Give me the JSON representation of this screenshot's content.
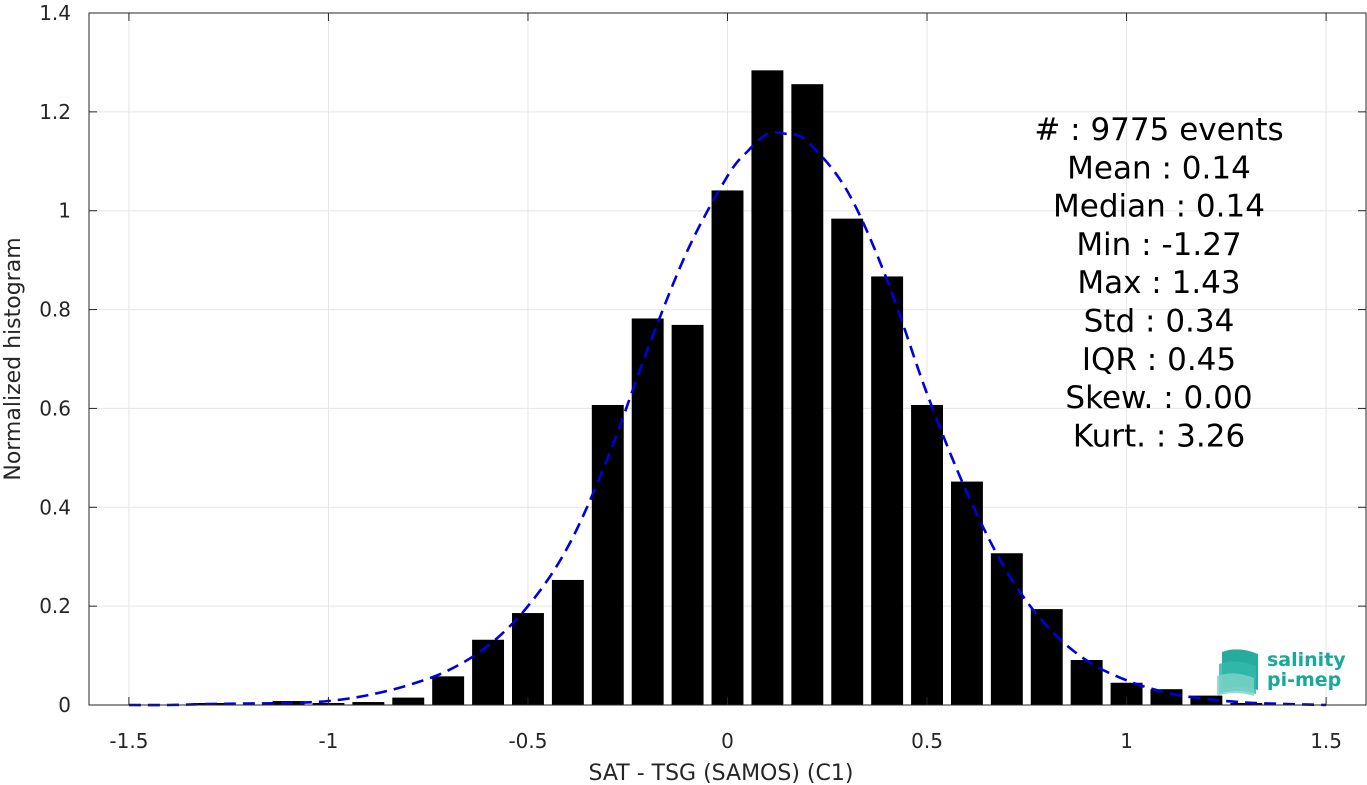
{
  "chart_data": {
    "type": "bar",
    "xlabel": "SAT - TSG (SAMOS) (C1)",
    "ylabel": "Normalized histogram",
    "xlim": [
      -1.6,
      1.6
    ],
    "ylim": [
      0,
      1.4
    ],
    "xticks": [
      -1.5,
      -1,
      -0.5,
      0,
      0.5,
      1,
      1.5
    ],
    "xtick_labels": [
      "-1.5",
      "-1",
      "-0.5",
      "0",
      "0.5",
      "1",
      "1.5"
    ],
    "yticks": [
      0,
      0.2,
      0.4,
      0.6,
      0.8,
      1,
      1.2,
      1.4
    ],
    "ytick_labels": [
      "0",
      "0.2",
      "0.4",
      "0.6",
      "0.8",
      "1",
      "1.2",
      "1.4"
    ],
    "grid": true,
    "bars": {
      "color": "#000000",
      "bin_width": 0.1,
      "x": [
        -1.3,
        -1.1,
        -1.0,
        -0.9,
        -0.8,
        -0.7,
        -0.6,
        -0.5,
        -0.4,
        -0.3,
        -0.2,
        -0.1,
        0.0,
        0.1,
        0.2,
        0.3,
        0.4,
        0.5,
        0.6,
        0.7,
        0.8,
        0.9,
        1.0,
        1.1,
        1.2,
        1.3
      ],
      "values": [
        0.004,
        0.008,
        0.004,
        0.006,
        0.015,
        0.058,
        0.132,
        0.186,
        0.253,
        0.607,
        0.782,
        0.769,
        1.041,
        1.284,
        1.256,
        0.984,
        0.867,
        0.607,
        0.452,
        0.307,
        0.194,
        0.091,
        0.045,
        0.032,
        0.019,
        0.004
      ]
    },
    "fit_curve": {
      "color": "#0000dd",
      "style": "dashed",
      "x": [
        -1.5,
        -1.4,
        -1.3,
        -1.2,
        -1.1,
        -1.0,
        -0.9,
        -0.8,
        -0.7,
        -0.6,
        -0.5,
        -0.4,
        -0.3,
        -0.2,
        -0.1,
        0.0,
        0.05,
        0.1,
        0.15,
        0.2,
        0.3,
        0.4,
        0.5,
        0.6,
        0.7,
        0.8,
        0.9,
        1.0,
        1.1,
        1.2,
        1.3,
        1.4,
        1.5
      ],
      "y": [
        0.0,
        0.0,
        0.002,
        0.003,
        0.004,
        0.008,
        0.02,
        0.04,
        0.07,
        0.12,
        0.2,
        0.32,
        0.5,
        0.72,
        0.92,
        1.07,
        1.12,
        1.155,
        1.155,
        1.14,
        1.04,
        0.86,
        0.63,
        0.43,
        0.27,
        0.16,
        0.09,
        0.05,
        0.025,
        0.012,
        0.005,
        0.002,
        0.0
      ]
    },
    "stats": [
      {
        "label": "#  : 9775 events"
      },
      {
        "label": "Mean : 0.14"
      },
      {
        "label": "Median : 0.14"
      },
      {
        "label": "Min : -1.27"
      },
      {
        "label": "Max : 1.43"
      },
      {
        "label": "Std : 0.34"
      },
      {
        "label": "IQR : 0.45"
      },
      {
        "label": "Skew. : 0.00"
      },
      {
        "label": "Kurt. : 3.26"
      }
    ]
  },
  "logo": {
    "line1": "salinity",
    "line2": "pi-mep",
    "color": "#1aa89a"
  }
}
